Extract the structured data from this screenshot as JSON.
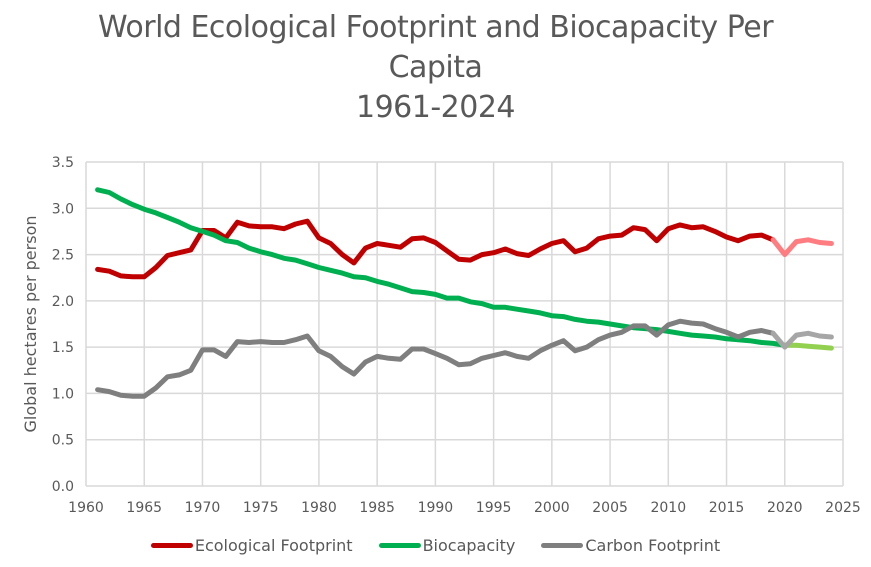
{
  "chart_data": {
    "type": "line",
    "title": [
      "World Ecological Footprint and Biocapacity Per",
      "Capita",
      "1961-2024"
    ],
    "xlabel": "",
    "ylabel": "Global hectares  per person",
    "xlim": [
      1960,
      2025
    ],
    "ylim": [
      0,
      3.5
    ],
    "x_ticks": [
      "1960",
      "1965",
      "1970",
      "1975",
      "1980",
      "1985",
      "1990",
      "1995",
      "2000",
      "2005",
      "2010",
      "2015",
      "2020",
      "2025"
    ],
    "y_ticks": [
      "0.0",
      "0.5",
      "1.0",
      "1.5",
      "2.0",
      "2.5",
      "3.0",
      "3.5"
    ],
    "grid": true,
    "legend_position": "bottom",
    "x": [
      1961,
      1962,
      1963,
      1964,
      1965,
      1966,
      1967,
      1968,
      1969,
      1970,
      1971,
      1972,
      1973,
      1974,
      1975,
      1976,
      1977,
      1978,
      1979,
      1980,
      1981,
      1982,
      1983,
      1984,
      1985,
      1986,
      1987,
      1988,
      1989,
      1990,
      1991,
      1992,
      1993,
      1994,
      1995,
      1996,
      1997,
      1998,
      1999,
      2000,
      2001,
      2002,
      2003,
      2004,
      2005,
      2006,
      2007,
      2008,
      2009,
      2010,
      2011,
      2012,
      2013,
      2014,
      2015,
      2016,
      2017,
      2018,
      2019,
      2020,
      2021,
      2022,
      2023,
      2024
    ],
    "series": [
      {
        "name": "Ecological Footprint",
        "color": "#C00000",
        "projection_color": "#FF7C80",
        "projection_start": 2019,
        "values": [
          2.34,
          2.32,
          2.27,
          2.26,
          2.26,
          2.36,
          2.49,
          2.52,
          2.55,
          2.76,
          2.76,
          2.68,
          2.85,
          2.81,
          2.8,
          2.8,
          2.78,
          2.83,
          2.86,
          2.68,
          2.62,
          2.5,
          2.41,
          2.57,
          2.62,
          2.6,
          2.58,
          2.67,
          2.68,
          2.63,
          2.54,
          2.45,
          2.44,
          2.5,
          2.52,
          2.56,
          2.51,
          2.49,
          2.56,
          2.62,
          2.65,
          2.53,
          2.57,
          2.67,
          2.7,
          2.71,
          2.79,
          2.77,
          2.65,
          2.78,
          2.82,
          2.79,
          2.8,
          2.75,
          2.69,
          2.65,
          2.7,
          2.71,
          2.66,
          2.5,
          2.64,
          2.66,
          2.63,
          2.62
        ]
      },
      {
        "name": "Biocapacity",
        "color": "#00B050",
        "projection_color": "#92D050",
        "projection_start": 2020,
        "values": [
          3.2,
          3.17,
          3.1,
          3.04,
          2.99,
          2.95,
          2.9,
          2.85,
          2.79,
          2.75,
          2.71,
          2.65,
          2.63,
          2.57,
          2.53,
          2.5,
          2.46,
          2.44,
          2.4,
          2.36,
          2.33,
          2.3,
          2.26,
          2.25,
          2.21,
          2.18,
          2.14,
          2.1,
          2.09,
          2.07,
          2.03,
          2.03,
          1.99,
          1.97,
          1.93,
          1.93,
          1.91,
          1.89,
          1.87,
          1.84,
          1.83,
          1.8,
          1.78,
          1.77,
          1.75,
          1.73,
          1.71,
          1.7,
          1.69,
          1.67,
          1.65,
          1.63,
          1.62,
          1.61,
          1.59,
          1.58,
          1.57,
          1.55,
          1.54,
          1.52,
          1.52,
          1.51,
          1.5,
          1.49
        ]
      },
      {
        "name": "Carbon Footprint",
        "color": "#7F7F7F",
        "projection_color": "#A6A6A6",
        "projection_start": 2019,
        "values": [
          1.04,
          1.02,
          0.98,
          0.97,
          0.97,
          1.06,
          1.18,
          1.2,
          1.25,
          1.47,
          1.47,
          1.4,
          1.56,
          1.55,
          1.56,
          1.55,
          1.55,
          1.58,
          1.62,
          1.46,
          1.4,
          1.29,
          1.21,
          1.34,
          1.4,
          1.38,
          1.37,
          1.48,
          1.48,
          1.43,
          1.38,
          1.31,
          1.32,
          1.38,
          1.41,
          1.44,
          1.4,
          1.38,
          1.46,
          1.52,
          1.57,
          1.46,
          1.5,
          1.58,
          1.63,
          1.66,
          1.73,
          1.73,
          1.63,
          1.74,
          1.78,
          1.76,
          1.75,
          1.7,
          1.66,
          1.61,
          1.66,
          1.68,
          1.65,
          1.5,
          1.63,
          1.65,
          1.62,
          1.61
        ]
      }
    ]
  }
}
